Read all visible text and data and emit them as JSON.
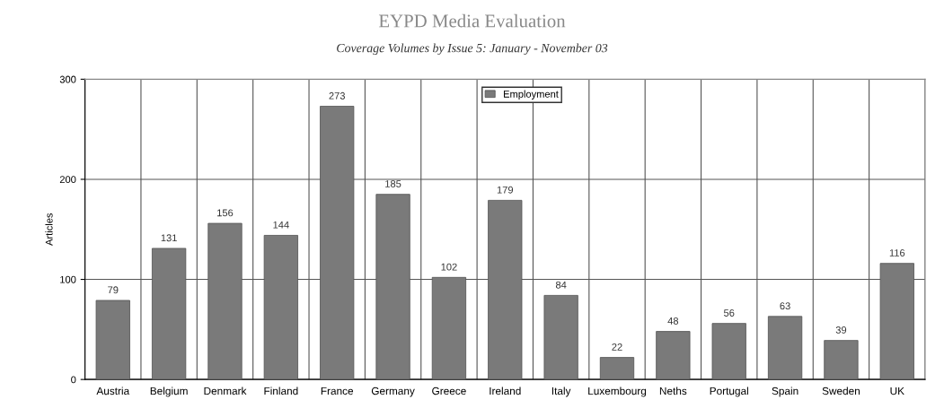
{
  "chart_data": {
    "type": "bar",
    "title": "EYPD Media Evaluation",
    "subtitle": "Coverage Volumes by Issue 5: January - November 03",
    "ylabel": "Articles",
    "categories": [
      "Austria",
      "Belgium",
      "Denmark",
      "Finland",
      "France",
      "Germany",
      "Greece",
      "Ireland",
      "Italy",
      "Luxembourg",
      "Neths",
      "Portugal",
      "Spain",
      "Sweden",
      "UK"
    ],
    "series": [
      {
        "name": "Employment",
        "color": "#7a7a7a",
        "values": [
          79,
          131,
          156,
          144,
          273,
          185,
          102,
          179,
          84,
          22,
          48,
          56,
          63,
          39,
          116
        ]
      }
    ],
    "ylim": [
      0,
      300
    ],
    "yticks": [
      0,
      100,
      200,
      300
    ],
    "grid": true,
    "legend": "top",
    "data_labels": true
  }
}
